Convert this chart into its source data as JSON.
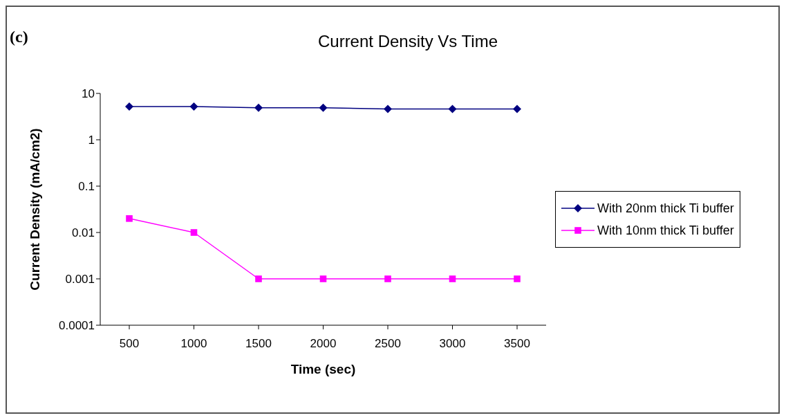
{
  "chart_data": {
    "type": "line",
    "title": "Current Density Vs Time",
    "xlabel": "Time (sec)",
    "ylabel": "Current Density (mA/cm2)",
    "annotations": [
      "(c)"
    ],
    "categories": [
      "500",
      "1000",
      "1500",
      "2000",
      "2500",
      "3000",
      "3500"
    ],
    "series": [
      {
        "name": "With 20nm thick Ti buffer",
        "color": "#000080",
        "marker": "diamond",
        "values": [
          5.2,
          5.2,
          4.9,
          4.9,
          4.6,
          4.6,
          4.6
        ]
      },
      {
        "name": "With 10nm thick Ti buffer",
        "color": "#ff00ff",
        "marker": "square",
        "values": [
          0.02,
          0.01,
          0.001,
          0.001,
          0.001,
          0.001,
          0.001
        ]
      }
    ],
    "log": "y",
    "ylim": [
      0.0001,
      10
    ],
    "yticks": [
      0.0001,
      0.001,
      0.01,
      0.1,
      1,
      10
    ],
    "grid": false,
    "legend": "right"
  }
}
